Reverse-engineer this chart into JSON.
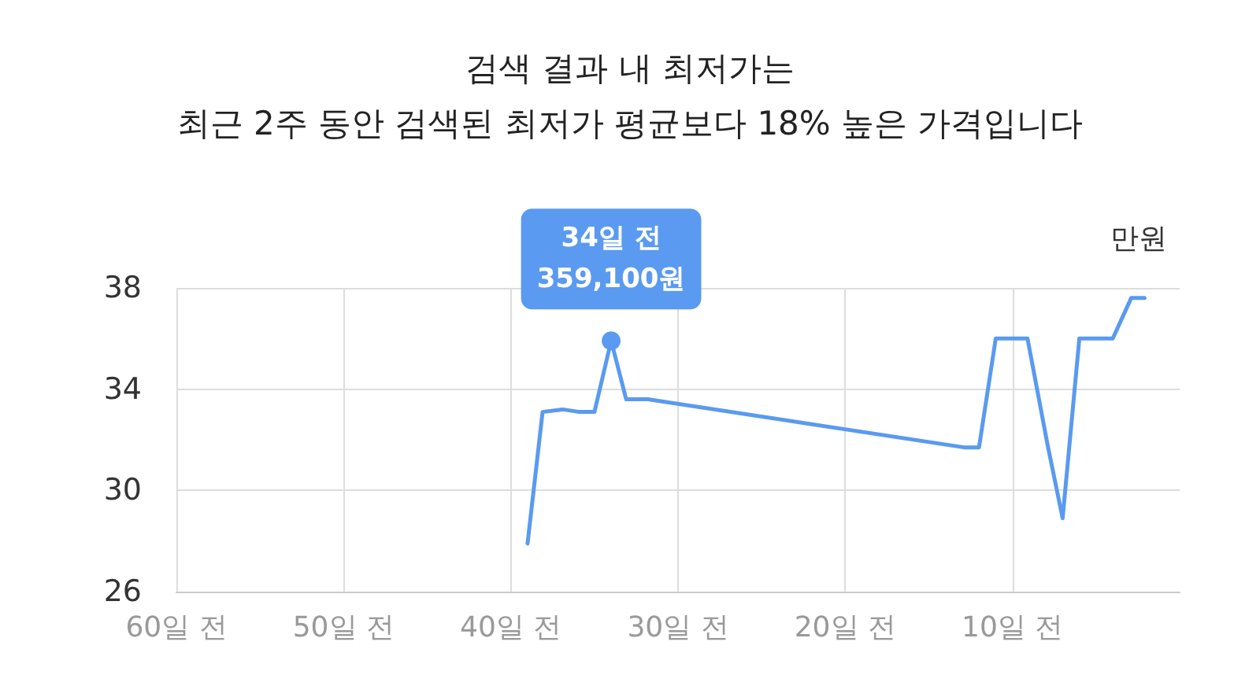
{
  "chart_data": {
    "type": "line",
    "title": "검색 결과 내 최저가는",
    "subtitle": "최근 2주 동안 검색된 최저가 평균보다 18% 높은 가격입니다",
    "ylabel": "만원",
    "x": [
      -39,
      -38.1,
      -36.9,
      -35.9,
      -35,
      -34,
      -33.1,
      -31.8,
      -12.9,
      -12,
      -11,
      -9.1,
      -7.9,
      -7,
      -6,
      -4,
      -2.9,
      -2.1
    ],
    "series": [
      {
        "color": "#5a9af0",
        "values": [
          27.9,
          33.1,
          33.2,
          33.1,
          33.1,
          35.91,
          33.6,
          33.6,
          31.7,
          31.7,
          36,
          36,
          31.8,
          28.9,
          36,
          36,
          37.6,
          37.6
        ]
      }
    ],
    "xlim": [
      -60,
      0
    ],
    "xticks": [
      {
        "value": -60,
        "label": "60일 전"
      },
      {
        "value": -50,
        "label": "50일 전"
      },
      {
        "value": -40,
        "label": "40일 전"
      },
      {
        "value": -30,
        "label": "30일 전"
      },
      {
        "value": -20,
        "label": "20일 전"
      },
      {
        "value": -10,
        "label": "10일 전"
      }
    ],
    "ylim": [
      26,
      38
    ],
    "yticks": [
      26,
      30,
      34,
      38
    ],
    "grid": true,
    "marker": "none",
    "line_style": "solid",
    "annotations": [
      {
        "text": "34일 전\n359,100원",
        "x": -34,
        "y": 35.91
      }
    ]
  }
}
